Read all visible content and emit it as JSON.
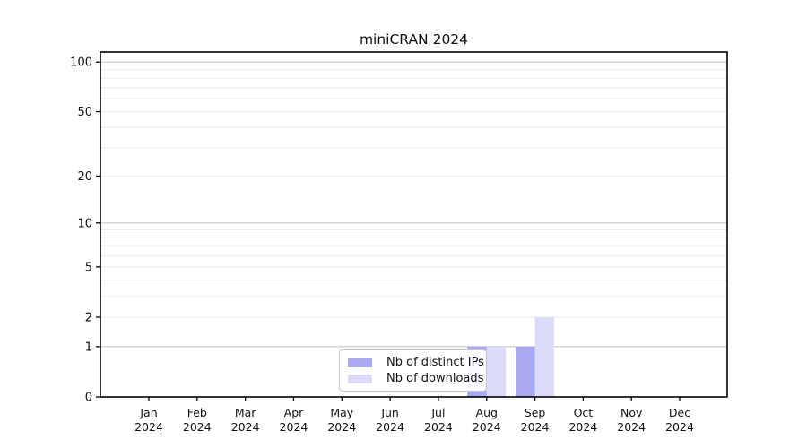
{
  "chart_data": {
    "type": "bar",
    "title": "miniCRAN 2024",
    "x_categories": [
      "Jan",
      "Feb",
      "Mar",
      "Apr",
      "May",
      "Jun",
      "Jul",
      "Aug",
      "Sep",
      "Oct",
      "Nov",
      "Dec"
    ],
    "x_year": "2024",
    "series": [
      {
        "name": "Nb of distinct IPs",
        "color": "#a9a9f2",
        "values": [
          0,
          0,
          0,
          0,
          0,
          0,
          0,
          1,
          1,
          0,
          0,
          0
        ]
      },
      {
        "name": "Nb of downloads",
        "color": "#dcdcf8",
        "values": [
          0,
          0,
          0,
          0,
          0,
          0,
          0,
          1,
          2,
          0,
          0,
          0
        ]
      }
    ],
    "y_scale": "log1p",
    "y_ticks": [
      0,
      1,
      2,
      5,
      10,
      20,
      50,
      100
    ],
    "y_decade_gridlines": [
      1,
      10,
      100
    ],
    "y_minor_gridlines": [
      2,
      3,
      4,
      5,
      6,
      7,
      8,
      9,
      20,
      30,
      40,
      50,
      60,
      70,
      80,
      90
    ],
    "ylim": [
      0,
      115
    ],
    "grid": "horizontal",
    "legend_position": "lower-center-inside",
    "colors": {
      "decade_grid": "#c9c9c9",
      "minor_grid": "#ebebeb",
      "frame": "#000000",
      "background": "#ffffff"
    }
  }
}
